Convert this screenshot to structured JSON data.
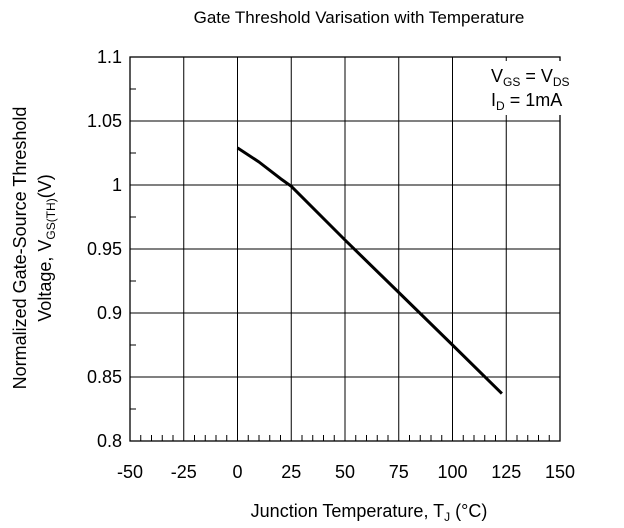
{
  "chart_data": {
    "type": "line",
    "title": "Gate Threshold Varisation with Temperature",
    "xlabel": {
      "main": "Junction Temperature, T",
      "sub": "J",
      "unit": " (°C)"
    },
    "ylabel": {
      "line1": "Normalized Gate-Source Threshold",
      "line2_main": "Voltage, V",
      "line2_sub": "GS(TH)",
      "line2_unit": "(V)"
    },
    "xlim": [
      -50,
      150
    ],
    "ylim": [
      0.8,
      1.1
    ],
    "x_ticks": [
      {
        "value": -50,
        "label": "-50"
      },
      {
        "value": -25,
        "label": "-25"
      },
      {
        "value": 0,
        "label": "0"
      },
      {
        "value": 25,
        "label": "25"
      },
      {
        "value": 50,
        "label": "50"
      },
      {
        "value": 75,
        "label": "75"
      },
      {
        "value": 100,
        "label": "100"
      },
      {
        "value": 125,
        "label": "125"
      },
      {
        "value": 150,
        "label": "150"
      }
    ],
    "y_ticks": [
      {
        "value": 0.8,
        "label": "0.8"
      },
      {
        "value": 0.85,
        "label": "0.85"
      },
      {
        "value": 0.9,
        "label": "0.9"
      },
      {
        "value": 0.95,
        "label": "0.95"
      },
      {
        "value": 1.0,
        "label": "1"
      },
      {
        "value": 1.05,
        "label": "1.05"
      },
      {
        "value": 1.1,
        "label": "1.1"
      }
    ],
    "x_minor_step": 5,
    "y_minor_step": 0.025,
    "grid": true,
    "series": [
      {
        "color": "#000000",
        "x": [
          0,
          10,
          20,
          25,
          50,
          75,
          100,
          123
        ],
        "y": [
          1.029,
          1.018,
          1.005,
          0.999,
          0.957,
          0.916,
          0.875,
          0.837
        ]
      }
    ],
    "annotation": {
      "line1_main": "V",
      "line1_sub1": "GS",
      "line1_eq": " = V",
      "line1_sub2": "DS",
      "line2_main": "I",
      "line2_sub": "D",
      "line2_rest": " = 1mA",
      "position": "top-right"
    }
  }
}
